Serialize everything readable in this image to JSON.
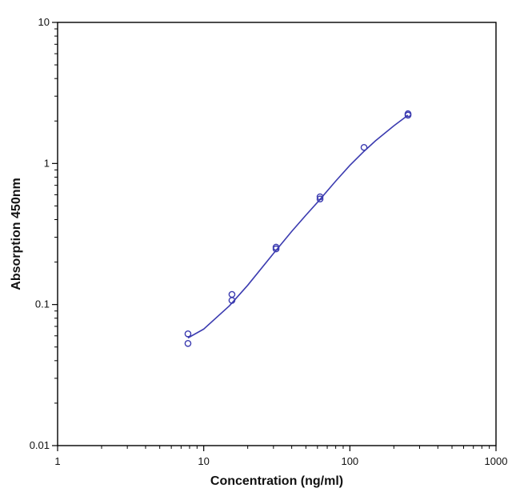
{
  "chart_data": {
    "type": "scatter",
    "title": "",
    "xlabel": "Concentration (ng/ml)",
    "ylabel": "Absorption 450nm",
    "x_scale": "log",
    "y_scale": "log",
    "xlim": [
      1,
      1000
    ],
    "ylim": [
      0.01,
      10
    ],
    "x_ticks": [
      1,
      10,
      100,
      1000
    ],
    "x_tick_labels": [
      "1",
      "10",
      "100",
      "1000"
    ],
    "y_ticks": [
      0.01,
      0.1,
      1,
      10
    ],
    "y_tick_labels": [
      "0.01",
      "0.1",
      "1",
      "10"
    ],
    "grid": false,
    "legend": "none",
    "colors": {
      "series": "#3b3bb0",
      "axes": "#000000"
    },
    "series": [
      {
        "type": "scatter",
        "marker": "open-circle",
        "x": [
          7.8,
          7.8,
          15.6,
          15.6,
          31.25,
          31.25,
          62.5,
          62.5,
          125,
          250,
          250
        ],
        "y": [
          0.062,
          0.053,
          0.118,
          0.107,
          0.255,
          0.248,
          0.58,
          0.56,
          1.3,
          2.25,
          2.2
        ]
      },
      {
        "type": "line",
        "x": [
          7.8,
          10,
          15,
          20,
          30,
          40,
          50,
          60,
          80,
          100,
          125,
          150,
          200,
          250
        ],
        "y": [
          0.058,
          0.067,
          0.098,
          0.137,
          0.23,
          0.33,
          0.43,
          0.53,
          0.75,
          0.97,
          1.22,
          1.45,
          1.85,
          2.2
        ]
      }
    ]
  }
}
